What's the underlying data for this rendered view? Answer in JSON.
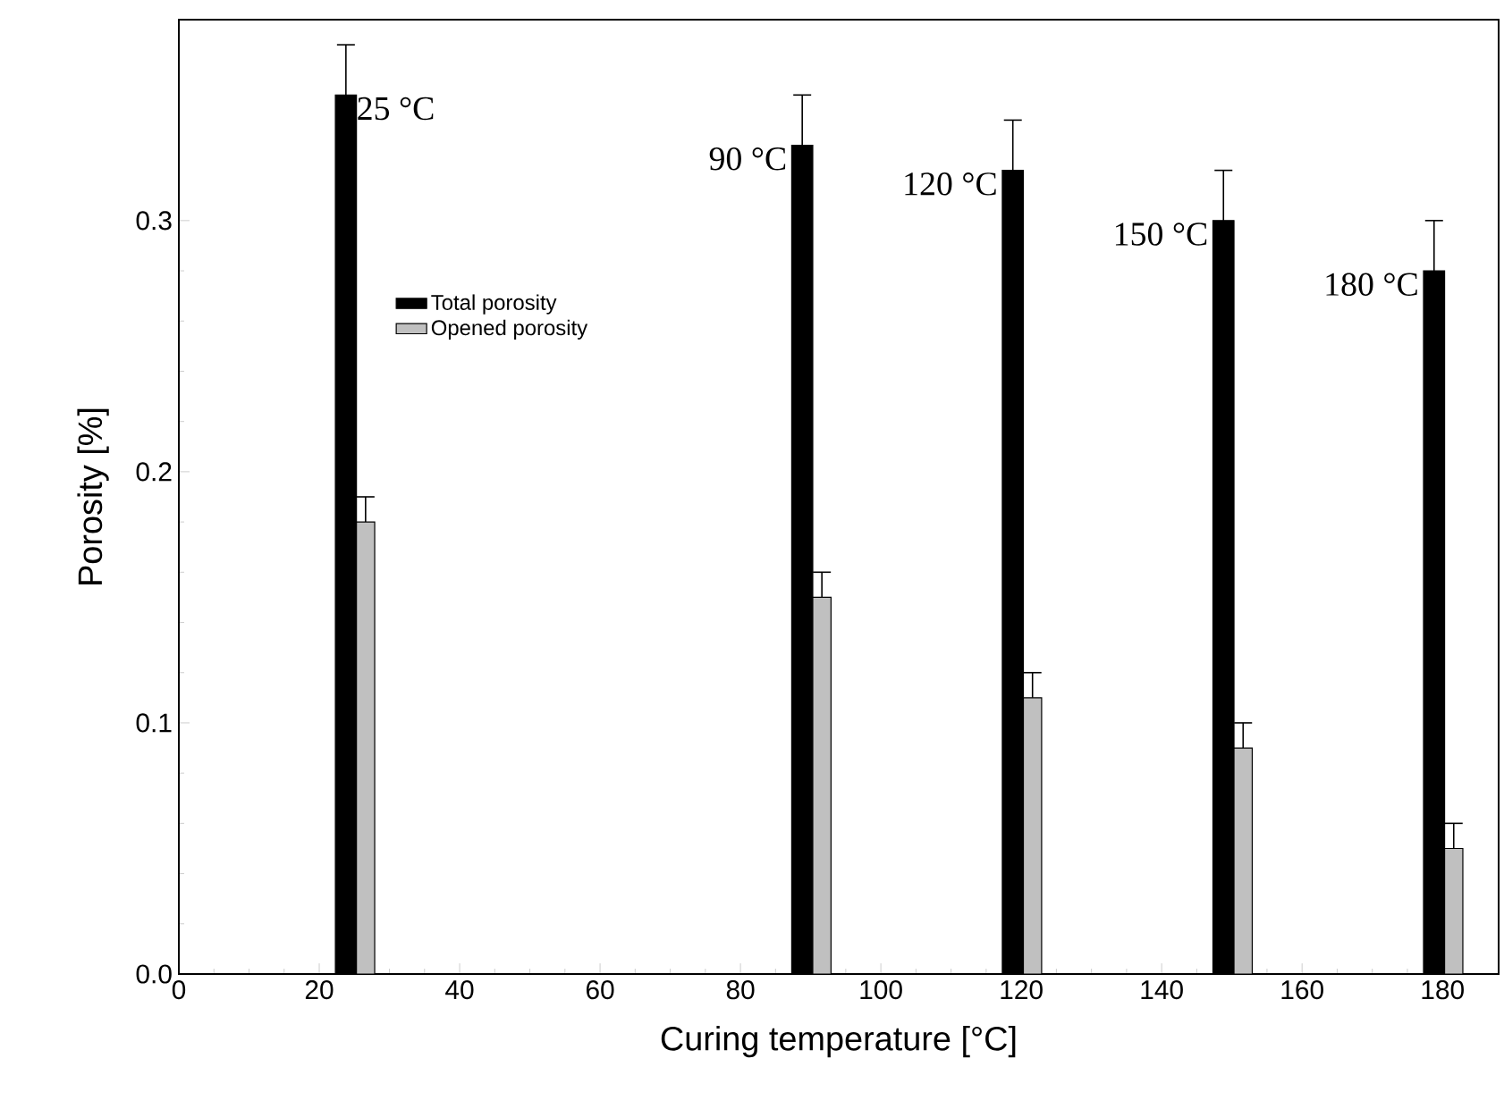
{
  "chart_data": {
    "type": "bar",
    "xlabel": "Curing temperature [°C]",
    "ylabel": "Porosity [%]",
    "x": [
      25,
      90,
      120,
      150,
      180
    ],
    "series": [
      {
        "name": "Total porosity",
        "color": "#000000",
        "values": [
          0.35,
          0.33,
          0.32,
          0.3,
          0.28
        ],
        "errors": [
          0.02,
          0.02,
          0.02,
          0.02,
          0.02
        ]
      },
      {
        "name": "Opened porosity",
        "color": "#c0c0c0",
        "values": [
          0.18,
          0.15,
          0.11,
          0.09,
          0.05
        ],
        "errors": [
          0.01,
          0.01,
          0.01,
          0.01,
          0.01
        ]
      }
    ],
    "xlim": [
      0,
      188
    ],
    "ylim": [
      0,
      0.38
    ],
    "xticks": [
      0,
      20,
      40,
      60,
      80,
      100,
      120,
      140,
      160,
      180
    ],
    "yticks": [
      {
        "value": 0,
        "label": "0.0"
      },
      {
        "value": 0.1,
        "label": "0.1"
      },
      {
        "value": 0.2,
        "label": "0.2"
      },
      {
        "value": 0.3,
        "label": "0.3"
      }
    ],
    "annotations": [
      {
        "text": "25 °C",
        "x": 25,
        "y": 0.35
      },
      {
        "text": "90 °C",
        "x": 90,
        "y": 0.33
      },
      {
        "text": "120 °C",
        "x": 120,
        "y": 0.32
      },
      {
        "text": "150 °C",
        "x": 150,
        "y": 0.3
      },
      {
        "text": "180 °C",
        "x": 180,
        "y": 0.28
      }
    ],
    "legend": "left",
    "grid": false
  }
}
